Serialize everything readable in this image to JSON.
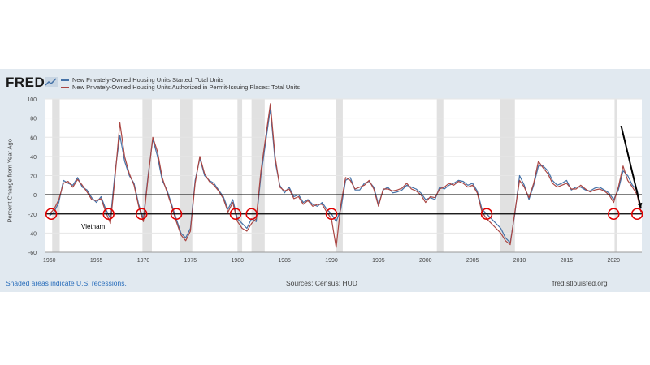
{
  "logo": {
    "text": "FRED"
  },
  "legend": [
    {
      "label": "New Privately-Owned Housing Units Started: Total Units",
      "color": "#4572a7"
    },
    {
      "label": "New Privately-Owned Housing Units Authorized in Permit-Issuing Places: Total Units",
      "color": "#aa4643"
    }
  ],
  "annotation": "Vietnam",
  "footer": {
    "left": "Shaded areas indicate U.S. recessions.",
    "center": "Sources: Census; HUD",
    "right": "fred.stlouisfed.org"
  },
  "chart_data": {
    "type": "line",
    "ylabel": "Percent Change from Year Ago",
    "xlim": [
      1959.5,
      2023.0
    ],
    "ylim": [
      -60,
      100
    ],
    "y_ticks": [
      -60,
      -40,
      -20,
      0,
      20,
      40,
      60,
      80,
      100
    ],
    "x_ticks": [
      1960,
      1965,
      1970,
      1975,
      1980,
      1985,
      1990,
      1995,
      2000,
      2005,
      2010,
      2015,
      2020
    ],
    "recessions": [
      [
        1960.3,
        1961.1
      ],
      [
        1969.9,
        1970.9
      ],
      [
        1973.9,
        1975.2
      ],
      [
        1980.0,
        1980.5
      ],
      [
        1981.5,
        1982.9
      ],
      [
        1990.5,
        1991.2
      ],
      [
        2001.2,
        2001.9
      ],
      [
        2007.9,
        2009.5
      ],
      [
        2020.1,
        2020.4
      ]
    ],
    "hlines": [
      0,
      -20
    ],
    "circles": [
      {
        "x": 1960.2,
        "y": -20
      },
      {
        "x": 1966.3,
        "y": -20
      },
      {
        "x": 1969.8,
        "y": -20
      },
      {
        "x": 1973.5,
        "y": -20
      },
      {
        "x": 1979.8,
        "y": -20
      },
      {
        "x": 1981.5,
        "y": -20
      },
      {
        "x": 1990.0,
        "y": -20
      },
      {
        "x": 2006.5,
        "y": -20
      },
      {
        "x": 2020.0,
        "y": -20
      },
      {
        "x": 2022.5,
        "y": -20
      }
    ],
    "arrow": {
      "from": {
        "x": 2020.8,
        "y": 72
      },
      "to": {
        "x": 2022.9,
        "y": -14
      }
    },
    "series": [
      {
        "name": "New Privately-Owned Housing Units Started: Total Units",
        "color": "#4572a7",
        "x": [
          1960.0,
          1960.5,
          1961.0,
          1961.5,
          1962.0,
          1962.5,
          1963.0,
          1963.5,
          1964.0,
          1964.5,
          1965.0,
          1965.5,
          1966.0,
          1966.5,
          1967.0,
          1967.5,
          1968.0,
          1968.5,
          1969.0,
          1969.5,
          1970.0,
          1970.5,
          1971.0,
          1971.5,
          1972.0,
          1972.5,
          1973.0,
          1973.5,
          1974.0,
          1974.5,
          1975.0,
          1975.5,
          1976.0,
          1976.5,
          1977.0,
          1977.5,
          1978.0,
          1978.5,
          1979.0,
          1979.5,
          1980.0,
          1980.5,
          1981.0,
          1981.5,
          1982.0,
          1982.5,
          1983.0,
          1983.5,
          1984.0,
          1984.5,
          1985.0,
          1985.5,
          1986.0,
          1986.5,
          1987.0,
          1987.5,
          1988.0,
          1988.5,
          1989.0,
          1989.5,
          1990.0,
          1990.5,
          1991.0,
          1991.5,
          1992.0,
          1992.5,
          1993.0,
          1993.5,
          1994.0,
          1994.5,
          1995.0,
          1995.5,
          1996.0,
          1996.5,
          1997.0,
          1997.5,
          1998.0,
          1998.5,
          1999.0,
          1999.5,
          2000.0,
          2000.5,
          2001.0,
          2001.5,
          2002.0,
          2002.5,
          2003.0,
          2003.5,
          2004.0,
          2004.5,
          2005.0,
          2005.5,
          2006.0,
          2006.5,
          2007.0,
          2007.5,
          2008.0,
          2008.5,
          2009.0,
          2009.5,
          2010.0,
          2010.5,
          2011.0,
          2011.5,
          2012.0,
          2012.5,
          2013.0,
          2013.5,
          2014.0,
          2014.5,
          2015.0,
          2015.5,
          2016.0,
          2016.5,
          2017.0,
          2017.5,
          2018.0,
          2018.5,
          2019.0,
          2019.5,
          2020.0,
          2020.5,
          2021.0,
          2021.5,
          2022.0,
          2022.5,
          2022.9
        ],
        "y": [
          -22,
          -18,
          -8,
          15,
          12,
          10,
          18,
          8,
          5,
          -3,
          -8,
          -2,
          -15,
          -25,
          25,
          62,
          35,
          20,
          12,
          -10,
          -25,
          20,
          58,
          40,
          15,
          5,
          -10,
          -25,
          -40,
          -45,
          -35,
          15,
          38,
          20,
          15,
          12,
          5,
          -2,
          -15,
          -5,
          -25,
          -30,
          -35,
          -25,
          -28,
          20,
          55,
          90,
          35,
          10,
          2,
          8,
          -2,
          0,
          -8,
          -5,
          -10,
          -12,
          -8,
          -15,
          -20,
          -28,
          -15,
          15,
          18,
          5,
          5,
          12,
          14,
          8,
          -10,
          5,
          8,
          2,
          3,
          5,
          10,
          8,
          6,
          2,
          -5,
          -3,
          -5,
          8,
          6,
          10,
          12,
          15,
          14,
          10,
          12,
          4,
          -15,
          -20,
          -25,
          -30,
          -35,
          -45,
          -50,
          -20,
          20,
          10,
          -5,
          10,
          30,
          30,
          25,
          15,
          10,
          12,
          15,
          5,
          8,
          8,
          5,
          4,
          7,
          8,
          5,
          2,
          -5,
          5,
          25,
          20,
          10,
          5,
          -15
        ]
      },
      {
        "name": "New Privately-Owned Housing Units Authorized in Permit-Issuing Places: Total Units",
        "color": "#aa4643",
        "x": [
          1960.0,
          1960.5,
          1961.0,
          1961.5,
          1962.0,
          1962.5,
          1963.0,
          1963.5,
          1964.0,
          1964.5,
          1965.0,
          1965.5,
          1966.0,
          1966.5,
          1967.0,
          1967.5,
          1968.0,
          1968.5,
          1969.0,
          1969.5,
          1970.0,
          1970.5,
          1971.0,
          1971.5,
          1972.0,
          1972.5,
          1973.0,
          1973.5,
          1974.0,
          1974.5,
          1975.0,
          1975.5,
          1976.0,
          1976.5,
          1977.0,
          1977.5,
          1978.0,
          1978.5,
          1979.0,
          1979.5,
          1980.0,
          1980.5,
          1981.0,
          1981.5,
          1982.0,
          1982.5,
          1983.0,
          1983.5,
          1984.0,
          1984.5,
          1985.0,
          1985.5,
          1986.0,
          1986.5,
          1987.0,
          1987.5,
          1988.0,
          1988.5,
          1989.0,
          1989.5,
          1990.0,
          1990.5,
          1991.0,
          1991.5,
          1992.0,
          1992.5,
          1993.0,
          1993.5,
          1994.0,
          1994.5,
          1995.0,
          1995.5,
          1996.0,
          1996.5,
          1997.0,
          1997.5,
          1998.0,
          1998.5,
          1999.0,
          1999.5,
          2000.0,
          2000.5,
          2001.0,
          2001.5,
          2002.0,
          2002.5,
          2003.0,
          2003.5,
          2004.0,
          2004.5,
          2005.0,
          2005.5,
          2006.0,
          2006.5,
          2007.0,
          2007.5,
          2008.0,
          2008.5,
          2009.0,
          2009.5,
          2010.0,
          2010.5,
          2011.0,
          2011.5,
          2012.0,
          2012.5,
          2013.0,
          2013.5,
          2014.0,
          2014.5,
          2015.0,
          2015.5,
          2016.0,
          2016.5,
          2017.0,
          2017.5,
          2018.0,
          2018.5,
          2019.0,
          2019.5,
          2020.0,
          2020.5,
          2021.0,
          2021.5,
          2022.0,
          2022.5,
          2022.9
        ],
        "y": [
          -20,
          -15,
          -5,
          12,
          14,
          8,
          16,
          10,
          3,
          -5,
          -6,
          -4,
          -18,
          -30,
          20,
          75,
          40,
          22,
          10,
          -12,
          -28,
          18,
          60,
          45,
          18,
          3,
          -12,
          -28,
          -42,
          -48,
          -38,
          12,
          40,
          22,
          14,
          10,
          4,
          -4,
          -18,
          -8,
          -28,
          -35,
          -38,
          -30,
          -25,
          25,
          60,
          95,
          40,
          8,
          4,
          6,
          -4,
          -2,
          -10,
          -6,
          -12,
          -10,
          -10,
          -18,
          -25,
          -55,
          -10,
          18,
          15,
          6,
          8,
          10,
          15,
          6,
          -12,
          6,
          6,
          4,
          5,
          7,
          12,
          6,
          4,
          0,
          -8,
          -2,
          -3,
          6,
          8,
          12,
          10,
          14,
          12,
          8,
          10,
          2,
          -18,
          -25,
          -30,
          -35,
          -40,
          -48,
          -52,
          -18,
          15,
          8,
          -3,
          12,
          35,
          28,
          22,
          12,
          8,
          10,
          12,
          6,
          6,
          10,
          6,
          3,
          5,
          6,
          4,
          0,
          -8,
          8,
          30,
          15,
          8,
          0,
          -18
        ]
      }
    ]
  }
}
